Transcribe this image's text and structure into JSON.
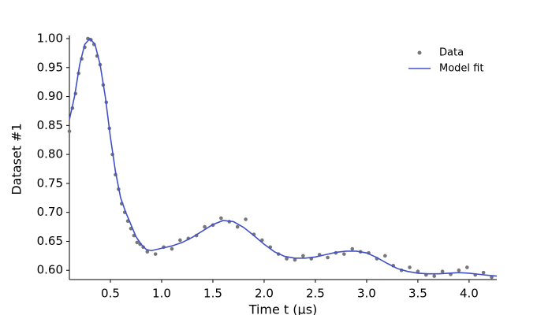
{
  "chart_data": {
    "type": "scatter",
    "x_label": "Time t (μs)",
    "y_label": "Dataset #1",
    "xlim": [
      0.1,
      4.27
    ],
    "ylim": [
      0.584,
      1.0
    ],
    "xticks": [
      {
        "value": 0.5,
        "label": "0.5"
      },
      {
        "value": 1,
        "label": "1.0"
      },
      {
        "value": 1.5,
        "label": "1.5"
      },
      {
        "value": 2,
        "label": "2.0"
      },
      {
        "value": 2.5,
        "label": "2.5"
      },
      {
        "value": 3,
        "label": "3.0"
      },
      {
        "value": 3.5,
        "label": "3.5"
      },
      {
        "value": 4,
        "label": "4.0"
      }
    ],
    "yticks": [
      {
        "value": 0.6,
        "label": "0.60"
      },
      {
        "value": 0.65,
        "label": "0.65"
      },
      {
        "value": 0.7,
        "label": "0.70"
      },
      {
        "value": 0.75,
        "label": "0.75"
      },
      {
        "value": 0.8,
        "label": "0.80"
      },
      {
        "value": 0.85,
        "label": "0.85"
      },
      {
        "value": 0.9,
        "label": "0.90"
      },
      {
        "value": 0.95,
        "label": "0.95"
      },
      {
        "value": 1,
        "label": "1.00"
      }
    ],
    "legend": "upper right",
    "series": [
      {
        "name": "Data",
        "type": "scatter",
        "color": "#777777",
        "x": [
          0.1,
          0.13,
          0.16,
          0.19,
          0.22,
          0.25,
          0.28,
          0.31,
          0.34,
          0.37,
          0.4,
          0.43,
          0.46,
          0.49,
          0.52,
          0.55,
          0.58,
          0.61,
          0.64,
          0.67,
          0.7,
          0.73,
          0.76,
          0.79,
          0.82,
          0.86,
          0.94,
          1.02,
          1.1,
          1.18,
          1.26,
          1.34,
          1.42,
          1.5,
          1.58,
          1.66,
          1.74,
          1.82,
          1.9,
          1.98,
          2.06,
          2.14,
          2.22,
          2.3,
          2.38,
          2.46,
          2.54,
          2.62,
          2.7,
          2.78,
          2.86,
          2.94,
          3.02,
          3.1,
          3.18,
          3.26,
          3.34,
          3.42,
          3.5,
          3.58,
          3.66,
          3.74,
          3.82,
          3.9,
          3.98,
          4.06,
          4.14,
          4.22
        ],
        "values": [
          0.84,
          0.88,
          0.905,
          0.94,
          0.965,
          0.985,
          1.0,
          0.998,
          0.99,
          0.97,
          0.955,
          0.92,
          0.89,
          0.845,
          0.8,
          0.765,
          0.74,
          0.715,
          0.7,
          0.685,
          0.672,
          0.66,
          0.648,
          0.645,
          0.64,
          0.632,
          0.628,
          0.64,
          0.637,
          0.652,
          0.655,
          0.66,
          0.675,
          0.678,
          0.69,
          0.684,
          0.675,
          0.688,
          0.662,
          0.652,
          0.64,
          0.628,
          0.62,
          0.618,
          0.625,
          0.62,
          0.627,
          0.622,
          0.63,
          0.628,
          0.637,
          0.632,
          0.63,
          0.62,
          0.625,
          0.608,
          0.6,
          0.605,
          0.598,
          0.592,
          0.59,
          0.598,
          0.593,
          0.6,
          0.605,
          0.592,
          0.596,
          0.588
        ]
      },
      {
        "name": "Model fit",
        "type": "line",
        "color": "#4250c8",
        "x": [
          0.1,
          0.15,
          0.2,
          0.25,
          0.3,
          0.35,
          0.4,
          0.45,
          0.5,
          0.55,
          0.6,
          0.65,
          0.7,
          0.75,
          0.8,
          0.85,
          0.9,
          1.0,
          1.1,
          1.2,
          1.3,
          1.4,
          1.5,
          1.6,
          1.7,
          1.8,
          1.9,
          2.0,
          2.1,
          2.2,
          2.3,
          2.4,
          2.5,
          2.6,
          2.7,
          2.8,
          2.9,
          3.0,
          3.1,
          3.2,
          3.3,
          3.4,
          3.5,
          3.6,
          3.7,
          3.8,
          3.9,
          4.0,
          4.1,
          4.2,
          4.27
        ],
        "values": [
          0.86,
          0.9,
          0.955,
          0.99,
          1.0,
          0.99,
          0.955,
          0.9,
          0.83,
          0.77,
          0.725,
          0.7,
          0.679,
          0.658,
          0.645,
          0.636,
          0.634,
          0.638,
          0.642,
          0.648,
          0.657,
          0.668,
          0.679,
          0.686,
          0.684,
          0.674,
          0.66,
          0.645,
          0.632,
          0.624,
          0.621,
          0.621,
          0.623,
          0.627,
          0.631,
          0.633,
          0.633,
          0.63,
          0.622,
          0.612,
          0.603,
          0.598,
          0.595,
          0.594,
          0.594,
          0.595,
          0.596,
          0.595,
          0.593,
          0.591,
          0.59
        ]
      }
    ]
  }
}
